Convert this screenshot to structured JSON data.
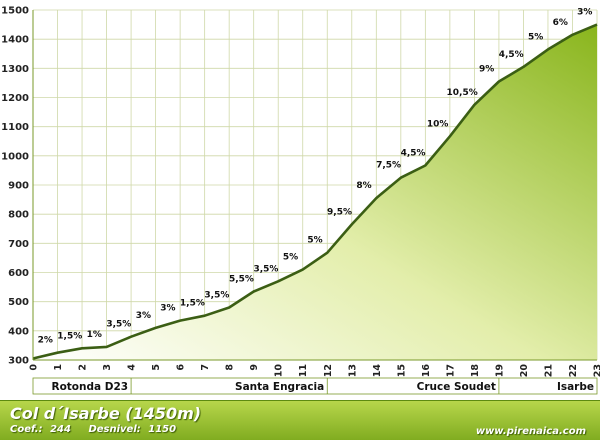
{
  "chart_data": {
    "type": "area",
    "x_ticks": [
      0,
      1,
      2,
      3,
      4,
      5,
      6,
      7,
      8,
      9,
      10,
      11,
      12,
      13,
      14,
      15,
      16,
      17,
      18,
      19,
      20,
      21,
      22,
      23
    ],
    "y_ticks": [
      300,
      400,
      500,
      600,
      700,
      800,
      900,
      1000,
      1100,
      1200,
      1300,
      1400,
      1500
    ],
    "ylim": [
      300,
      1500
    ],
    "xlim": [
      0,
      23
    ],
    "x": [
      0,
      1,
      2,
      3,
      4,
      5,
      6,
      7,
      8,
      9,
      10,
      11,
      12,
      13,
      14,
      15,
      16,
      17,
      18,
      19,
      20,
      21,
      22,
      23
    ],
    "y": [
      305,
      325,
      340,
      345,
      380,
      410,
      435,
      452,
      480,
      535,
      570,
      610,
      668,
      765,
      855,
      925,
      967,
      1067,
      1175,
      1255,
      1305,
      1365,
      1415,
      1450
    ],
    "grades": [
      "2%",
      "1,5%",
      "1%",
      "3,5%",
      "3%",
      "3%",
      "1,5%",
      "3,5%",
      "5,5%",
      "3,5%",
      "5%",
      "5%",
      "9,5%",
      "8%",
      "7,5%",
      "4,5%",
      "10%",
      "10,5%",
      "9%",
      "4,5%",
      "5%",
      "6%",
      "3%"
    ],
    "places": [
      {
        "name": "Rotonda D23",
        "from": 0,
        "to": 4
      },
      {
        "name": "Santa Engracia",
        "from": 4,
        "to": 12
      },
      {
        "name": "Cruce Soudet",
        "from": 12,
        "to": 19
      },
      {
        "name": "Isarbe",
        "from": 19,
        "to": 23
      }
    ],
    "grid": true
  },
  "footer": {
    "title": "Col d´Isarbe (1450m)",
    "coef_label": "Coef.:",
    "coef_value": "244",
    "desnivel_label": "Desnivel:",
    "desnivel_value": "1150",
    "site": "www.pirenaica.com"
  },
  "colors": {
    "area_light": "#f6f9e4",
    "area_dark": "#8fbb23",
    "line": "#3b5e14",
    "grid": "#cfd8a8",
    "axis_frame": "#7a9a2a"
  }
}
